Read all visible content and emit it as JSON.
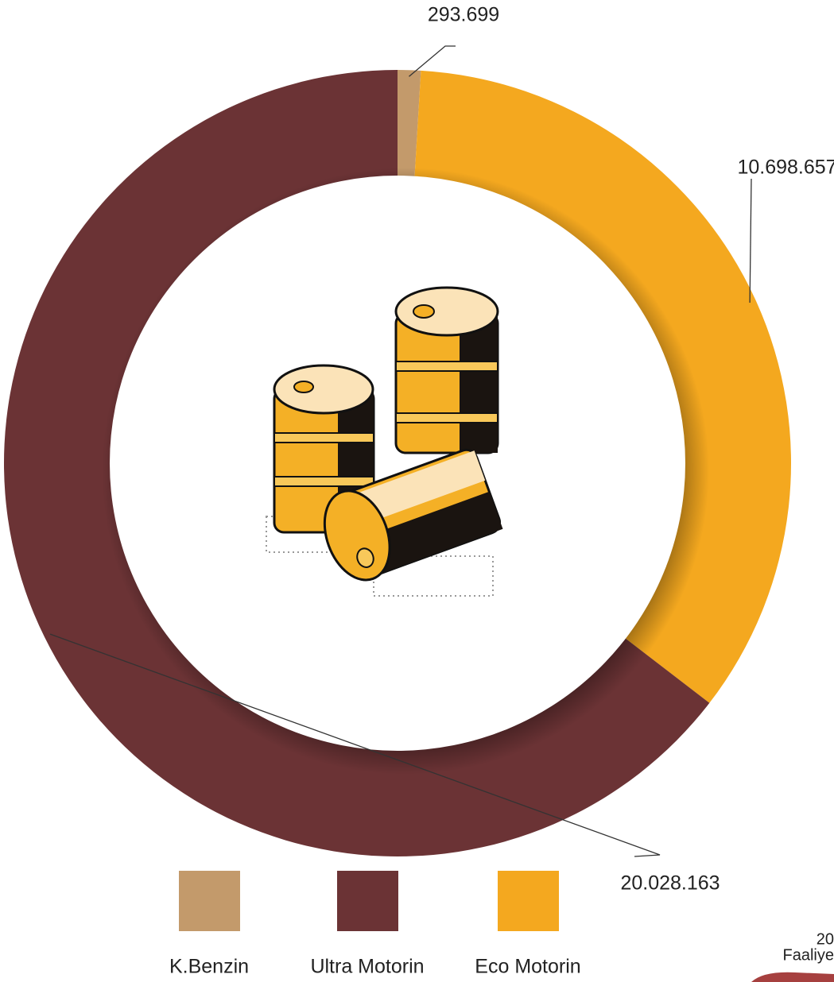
{
  "chart_data": {
    "type": "donut",
    "categories": [
      "K.Benzin",
      "Eco Motorin",
      "Ultra Motorin"
    ],
    "values": [
      293699,
      10698657,
      20028163
    ],
    "value_labels": [
      "293.699",
      "10.698.657",
      "20.028.163"
    ],
    "colors": [
      "#c39a6b",
      "#f4a81f",
      "#6b3335"
    ]
  },
  "footer": {
    "year": "20",
    "label": "Faaliye"
  }
}
